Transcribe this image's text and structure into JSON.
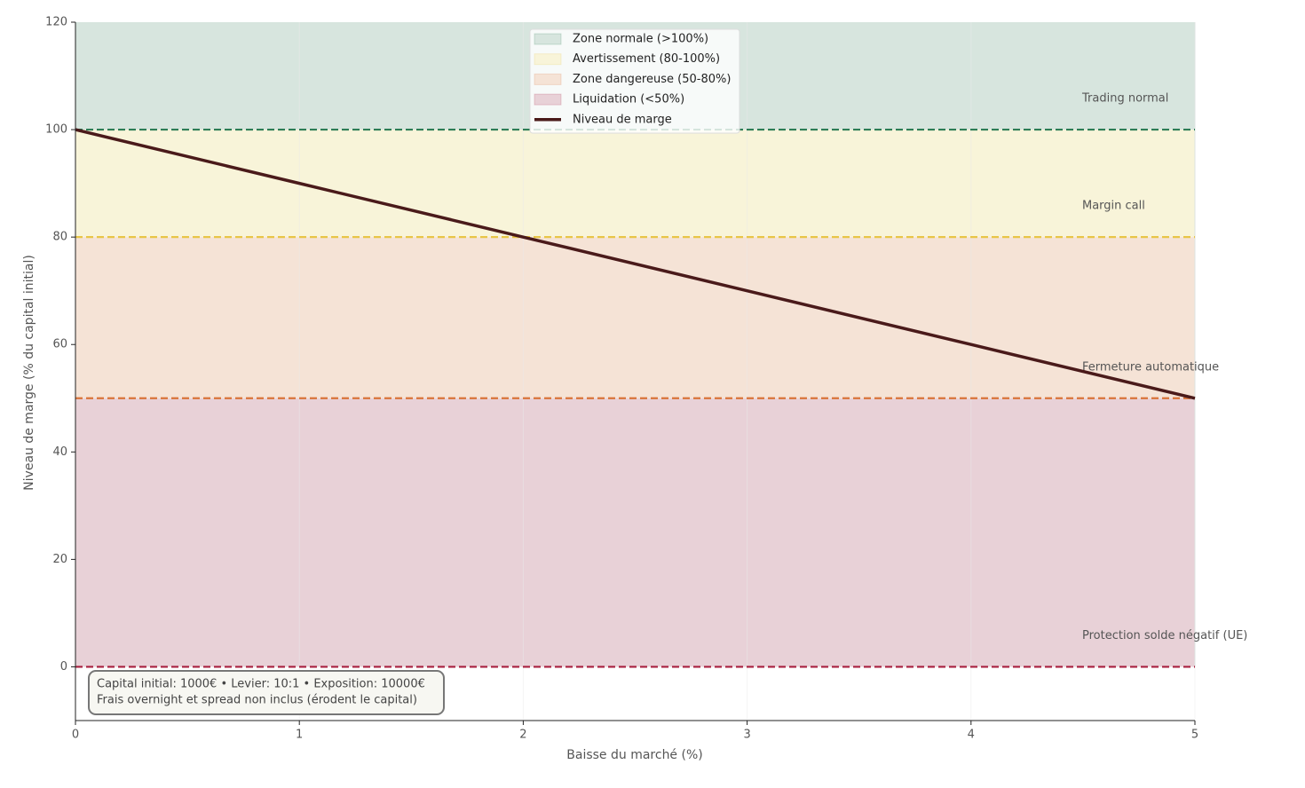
{
  "chart_data": {
    "type": "line",
    "x_label": "Baisse du marché (%)",
    "y_label": "Niveau de marge (% du capital initial)",
    "x": [
      0,
      1,
      2,
      3,
      4,
      5
    ],
    "series": [
      {
        "name": "Niveau de marge",
        "color": "#4a1a1a",
        "values": [
          100,
          90,
          80,
          70,
          60,
          50
        ]
      }
    ],
    "zones": [
      {
        "name": "Zone normale (>100%)",
        "range": [
          100,
          120
        ],
        "color": "#d7e5de",
        "line_color": "#2e7d57",
        "annotation": "Trading normal"
      },
      {
        "name": "Avertissement (80-100%)",
        "range": [
          80,
          100
        ],
        "color": "#f8f4d9",
        "line_color": "#e8c547",
        "annotation": "Margin call"
      },
      {
        "name": "Zone dangereuse (50-80%)",
        "range": [
          50,
          80
        ],
        "color": "#f5e3d6",
        "line_color": "#d9743a",
        "annotation": "Fermeture automatique"
      },
      {
        "name": "Liquidation (<50%)",
        "range": [
          0,
          50
        ],
        "color": "#e8d1d7",
        "line_color": "#a8213f",
        "annotation": "Protection solde négatif (UE)"
      }
    ],
    "info_box": [
      "Capital initial: 1000€ • Levier: 10:1 • Exposition: 10000€",
      "Frais overnight et spread non inclus (érodent le capital)"
    ],
    "xlim": [
      0,
      5
    ],
    "ylim": [
      -10,
      120
    ],
    "xticks": [
      0,
      1,
      2,
      3,
      4,
      5
    ],
    "yticks": [
      0,
      20,
      40,
      60,
      80,
      100,
      120
    ],
    "grid": true,
    "legend": "upper center"
  }
}
